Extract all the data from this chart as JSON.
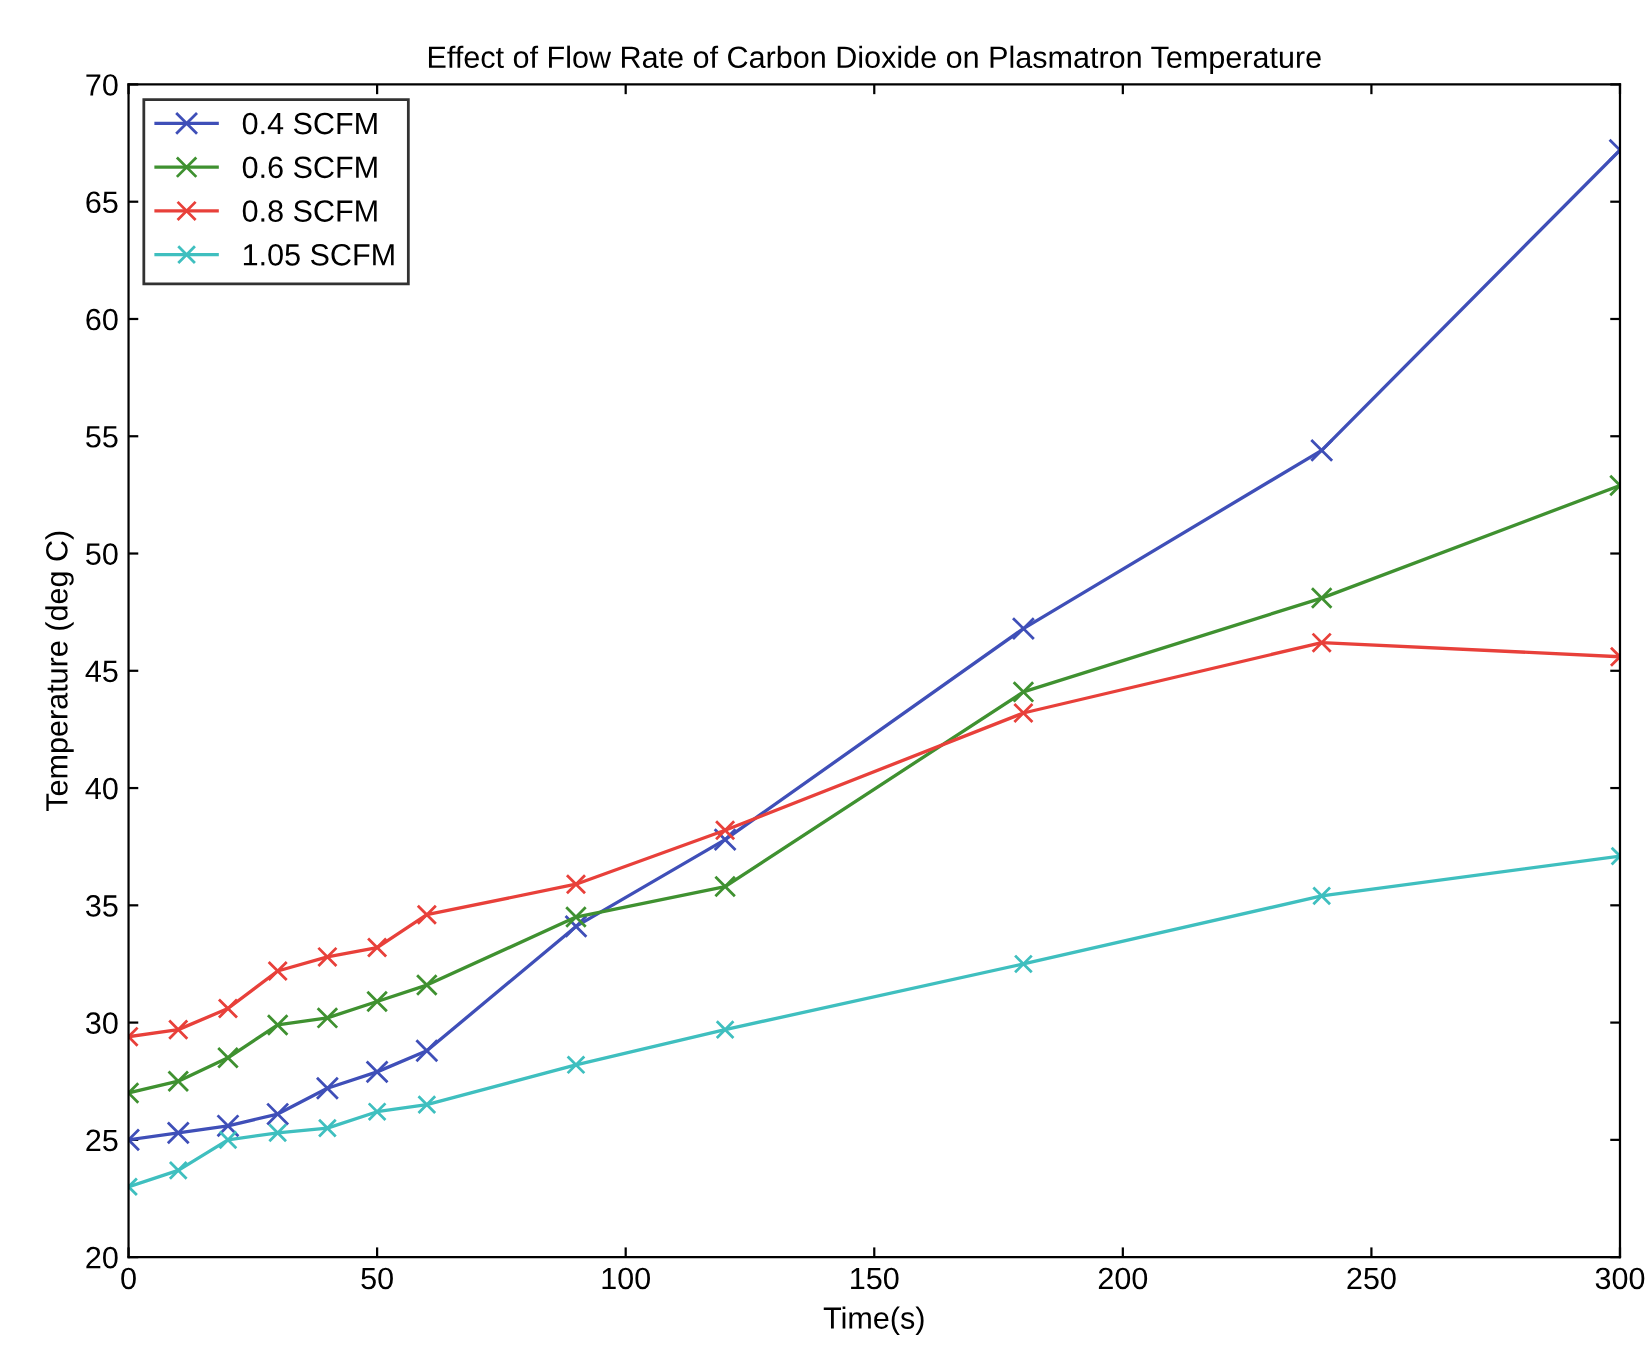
{
  "chart_data": {
    "type": "line",
    "title": "Effect of Flow Rate of Carbon Dioxide on Plasmatron Temperature",
    "xlabel": "Time(s)",
    "ylabel": "Temperature (deg C)",
    "x": [
      0,
      10,
      20,
      30,
      40,
      50,
      60,
      90,
      120,
      180,
      240,
      300
    ],
    "series": [
      {
        "name": "0.4 SCFM",
        "color": "#3f4fb8",
        "values": [
          25.0,
          25.3,
          25.6,
          26.1,
          27.2,
          27.9,
          28.8,
          34.1,
          37.8,
          46.8,
          54.4,
          67.2
        ]
      },
      {
        "name": "0.6 SCFM",
        "color": "#3f9130",
        "values": [
          27.0,
          27.5,
          28.5,
          29.9,
          30.2,
          30.9,
          31.6,
          34.5,
          35.8,
          44.1,
          48.1,
          52.9
        ]
      },
      {
        "name": "0.8 SCFM",
        "color": "#e8403a",
        "values": [
          29.4,
          29.7,
          30.6,
          32.2,
          32.8,
          33.2,
          34.6,
          35.9,
          38.2,
          43.2,
          46.2,
          45.6
        ]
      },
      {
        "name": "1.05 SCFM",
        "color": "#3fbfbf",
        "values": [
          23.0,
          23.7,
          25.0,
          25.3,
          25.5,
          26.2,
          26.5,
          28.2,
          29.7,
          32.5,
          35.4,
          37.1
        ]
      }
    ],
    "xlim": [
      0,
      300
    ],
    "ylim": [
      20,
      70
    ],
    "xticks": [
      0,
      50,
      100,
      150,
      200,
      250,
      300
    ],
    "yticks": [
      20,
      25,
      30,
      35,
      40,
      45,
      50,
      55,
      60,
      65,
      70
    ],
    "grid": false,
    "legend": "top left",
    "marker": "cross",
    "line_style": "solid"
  }
}
